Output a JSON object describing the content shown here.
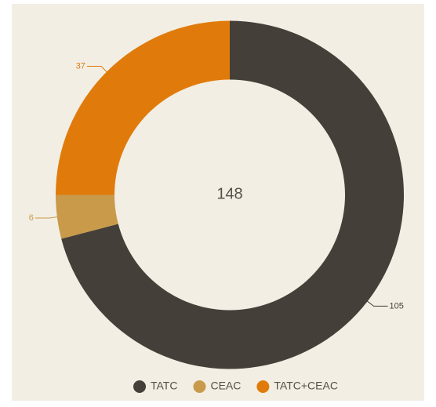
{
  "chart_data": {
    "type": "donut",
    "total": 148,
    "categories": [
      "TATC",
      "CEAC",
      "TATC+CEAC"
    ],
    "values": [
      105,
      6,
      37
    ],
    "colors": [
      "#443f38",
      "#c99a4a",
      "#e07b0b"
    ],
    "legend": "bottom"
  }
}
